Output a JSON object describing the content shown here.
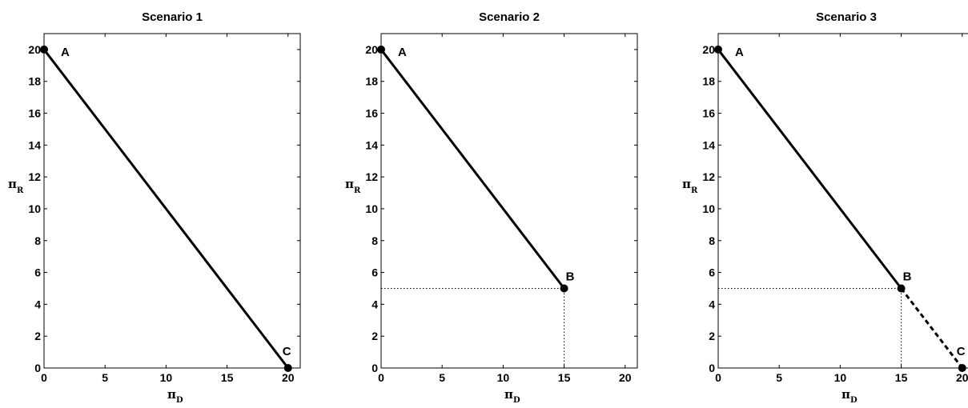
{
  "chart_data": [
    {
      "type": "line",
      "title": "Scenario 1",
      "xlabel_symbol": "π",
      "xlabel_sub": "D",
      "ylabel_symbol": "π",
      "ylabel_sub": "R",
      "xlim": [
        0,
        21
      ],
      "ylim": [
        0,
        21
      ],
      "xticks": [
        "0",
        "5",
        "10",
        "15",
        "20"
      ],
      "yticks": [
        "0",
        "2",
        "4",
        "6",
        "8",
        "10",
        "12",
        "14",
        "16",
        "18",
        "20"
      ],
      "grid": false,
      "series": [
        {
          "style": "solid",
          "x": [
            0,
            20
          ],
          "y": [
            20,
            0
          ]
        }
      ],
      "points": [
        {
          "label": "A",
          "x": 0,
          "y": 20
        },
        {
          "label": "C",
          "x": 20,
          "y": 0
        }
      ],
      "guides": []
    },
    {
      "type": "line",
      "title": "Scenario 2",
      "xlabel_symbol": "π",
      "xlabel_sub": "D",
      "ylabel_symbol": "π",
      "ylabel_sub": "R",
      "xlim": [
        0,
        21
      ],
      "ylim": [
        0,
        21
      ],
      "xticks": [
        "0",
        "5",
        "10",
        "15",
        "20"
      ],
      "yticks": [
        "0",
        "2",
        "4",
        "6",
        "8",
        "10",
        "12",
        "14",
        "16",
        "18",
        "20"
      ],
      "grid": false,
      "series": [
        {
          "style": "solid",
          "x": [
            0,
            15
          ],
          "y": [
            20,
            5
          ]
        }
      ],
      "points": [
        {
          "label": "A",
          "x": 0,
          "y": 20
        },
        {
          "label": "B",
          "x": 15,
          "y": 5
        }
      ],
      "guides": [
        {
          "x": [
            0,
            15
          ],
          "y": [
            5,
            5
          ]
        },
        {
          "x": [
            15,
            15
          ],
          "y": [
            0,
            5
          ]
        },
        {
          "x": [
            0,
            15
          ],
          "y": [
            0,
            0
          ]
        }
      ]
    },
    {
      "type": "line",
      "title": "Scenario 3",
      "xlabel_symbol": "π",
      "xlabel_sub": "D",
      "ylabel_symbol": "π",
      "ylabel_sub": "R",
      "xlim": [
        0,
        21
      ],
      "ylim": [
        0,
        21
      ],
      "xticks": [
        "0",
        "5",
        "10",
        "15",
        "20"
      ],
      "yticks": [
        "0",
        "2",
        "4",
        "6",
        "8",
        "10",
        "12",
        "14",
        "16",
        "18",
        "20"
      ],
      "grid": false,
      "series": [
        {
          "style": "solid",
          "x": [
            0,
            15
          ],
          "y": [
            20,
            5
          ]
        },
        {
          "style": "dashed",
          "x": [
            15,
            20
          ],
          "y": [
            5,
            0
          ]
        }
      ],
      "points": [
        {
          "label": "A",
          "x": 0,
          "y": 20
        },
        {
          "label": "B",
          "x": 15,
          "y": 5
        },
        {
          "label": "C",
          "x": 20,
          "y": 0
        }
      ],
      "guides": [
        {
          "x": [
            0,
            15
          ],
          "y": [
            5,
            5
          ]
        },
        {
          "x": [
            15,
            15
          ],
          "y": [
            0,
            5
          ]
        },
        {
          "x": [
            0,
            20
          ],
          "y": [
            0,
            0
          ]
        }
      ]
    }
  ]
}
